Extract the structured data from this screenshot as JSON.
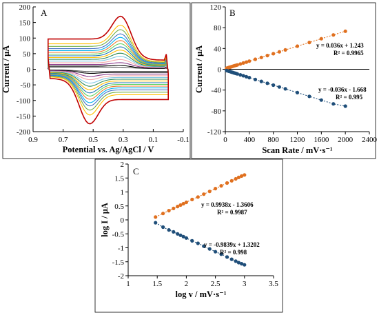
{
  "chart_data": [
    {
      "panel": "A",
      "type": "line",
      "xlabel": "Potential vs. Ag/AgCl / V",
      "ylabel": "Current / μA",
      "xlim": [
        0.9,
        -0.1
      ],
      "ylim": [
        -200,
        200
      ],
      "x_ticks": [
        0.9,
        0.7,
        0.5,
        0.3,
        0.1,
        -0.1
      ],
      "x_tick_labels": [
        "0.9",
        "0.7",
        "0.5",
        "0.3",
        "0.1",
        "-0.1"
      ],
      "y_ticks": [
        200,
        150,
        100,
        50,
        0,
        -50,
        -100,
        -150,
        -200
      ],
      "potential_window": [
        0.0,
        0.8
      ],
      "oxidation_peak_potential": 0.31,
      "reduction_peak_potential": 0.53,
      "grid": false,
      "series_colors": [
        "#5a5a5a",
        "#000000",
        "#8b3a8c",
        "#f4a8a8",
        "#7ec8e3",
        "#2e8b57",
        "#ffc000",
        "#1f77b4",
        "#5fd35f",
        "#ed7d31",
        "#00b0f0",
        "#4472c4",
        "#70ad47",
        "#ffc000",
        "#c00000"
      ],
      "series": [
        {
          "peak_anodic_current": 5,
          "peak_cathodic_current": -6
        },
        {
          "peak_anodic_current": 10,
          "peak_cathodic_current": -11
        },
        {
          "peak_anodic_current": 18,
          "peak_cathodic_current": -20
        },
        {
          "peak_anodic_current": 27,
          "peak_cathodic_current": -29
        },
        {
          "peak_anodic_current": 36,
          "peak_cathodic_current": -39
        },
        {
          "peak_anodic_current": 45,
          "peak_cathodic_current": -48
        },
        {
          "peak_anodic_current": 54,
          "peak_cathodic_current": -58
        },
        {
          "peak_anodic_current": 63,
          "peak_cathodic_current": -67
        },
        {
          "peak_anodic_current": 72,
          "peak_cathodic_current": -76
        },
        {
          "peak_anodic_current": 81,
          "peak_cathodic_current": -85
        },
        {
          "peak_anodic_current": 90,
          "peak_cathodic_current": -95
        },
        {
          "peak_anodic_current": 100,
          "peak_cathodic_current": -104
        },
        {
          "peak_anodic_current": 112,
          "peak_cathodic_current": -116
        },
        {
          "peak_anodic_current": 125,
          "peak_cathodic_current": -130
        },
        {
          "peak_anodic_current": 150,
          "peak_cathodic_current": -155
        }
      ]
    },
    {
      "panel": "B",
      "type": "scatter",
      "xlabel": "Scan Rate / mV·s⁻¹",
      "ylabel": "Current / μA",
      "xlim": [
        0,
        2400
      ],
      "ylim": [
        -120,
        120
      ],
      "x_ticks": [
        0,
        400,
        800,
        1200,
        1600,
        2000,
        2400
      ],
      "y_ticks": [
        120,
        80,
        40,
        0,
        -40,
        -80,
        -120
      ],
      "x": [
        20,
        40,
        60,
        80,
        100,
        120,
        140,
        160,
        180,
        200,
        250,
        300,
        350,
        400,
        500,
        600,
        700,
        800,
        900,
        1000,
        1200,
        1400,
        1600,
        1800,
        2000
      ],
      "series": [
        {
          "color": "#e0701f",
          "equation": "y = 0.036x + 1.243",
          "r2": "R² = 0.9965",
          "values": [
            2.0,
            2.7,
            3.4,
            4.1,
            4.8,
            5.6,
            6.3,
            7.0,
            7.7,
            8.4,
            10.2,
            12.0,
            13.8,
            15.6,
            19.2,
            22.8,
            26.4,
            30.0,
            33.6,
            37.2,
            44.4,
            51.6,
            58.8,
            66.0,
            73.2
          ]
        },
        {
          "color": "#1f4e79",
          "equation": "y = -0.036x - 1.668",
          "r2": "R² = 0.995",
          "values": [
            -2.4,
            -3.1,
            -3.8,
            -4.5,
            -5.3,
            -6.0,
            -6.7,
            -7.4,
            -8.1,
            -8.9,
            -10.7,
            -12.5,
            -14.3,
            -16.1,
            -19.7,
            -23.3,
            -26.9,
            -30.5,
            -34.1,
            -37.7,
            -44.9,
            -52.1,
            -59.3,
            -66.5,
            -71.0
          ]
        }
      ]
    },
    {
      "panel": "C",
      "type": "scatter",
      "xlabel": "log v / mV·s⁻¹",
      "ylabel": "log I / μA",
      "xlim": [
        1,
        3.5
      ],
      "ylim": [
        -2,
        2
      ],
      "x_ticks": [
        1,
        1.5,
        2,
        2.5,
        3,
        3.5
      ],
      "y_ticks": [
        2,
        1.5,
        1,
        0.5,
        0,
        -0.5,
        -1,
        -1.5,
        -2
      ],
      "series": [
        {
          "color": "#e0701f",
          "equation": "y = 0.9938x - 1.3606",
          "r2": "R² = 0.9987",
          "x": [
            1.47,
            1.6,
            1.7,
            1.78,
            1.85,
            1.9,
            1.95,
            2.0,
            2.1,
            2.2,
            2.3,
            2.4,
            2.5,
            2.6,
            2.7,
            2.78,
            2.85,
            2.9,
            2.95,
            3.0
          ],
          "values": [
            0.1,
            0.23,
            0.33,
            0.41,
            0.48,
            0.53,
            0.58,
            0.63,
            0.73,
            0.82,
            0.92,
            1.02,
            1.12,
            1.22,
            1.32,
            1.4,
            1.47,
            1.52,
            1.57,
            1.61
          ]
        },
        {
          "color": "#1f4e79",
          "equation": "y = -0.9839x + 1.3202",
          "r2": "R² = 0.998",
          "x": [
            1.47,
            1.6,
            1.7,
            1.78,
            1.85,
            1.9,
            1.95,
            2.0,
            2.1,
            2.2,
            2.3,
            2.4,
            2.5,
            2.6,
            2.7,
            2.78,
            2.85,
            2.9,
            2.95,
            3.0
          ],
          "values": [
            -0.1,
            -0.26,
            -0.36,
            -0.43,
            -0.5,
            -0.55,
            -0.6,
            -0.65,
            -0.75,
            -0.84,
            -0.94,
            -1.04,
            -1.14,
            -1.23,
            -1.33,
            -1.41,
            -1.48,
            -1.53,
            -1.57,
            -1.61
          ]
        }
      ]
    }
  ]
}
